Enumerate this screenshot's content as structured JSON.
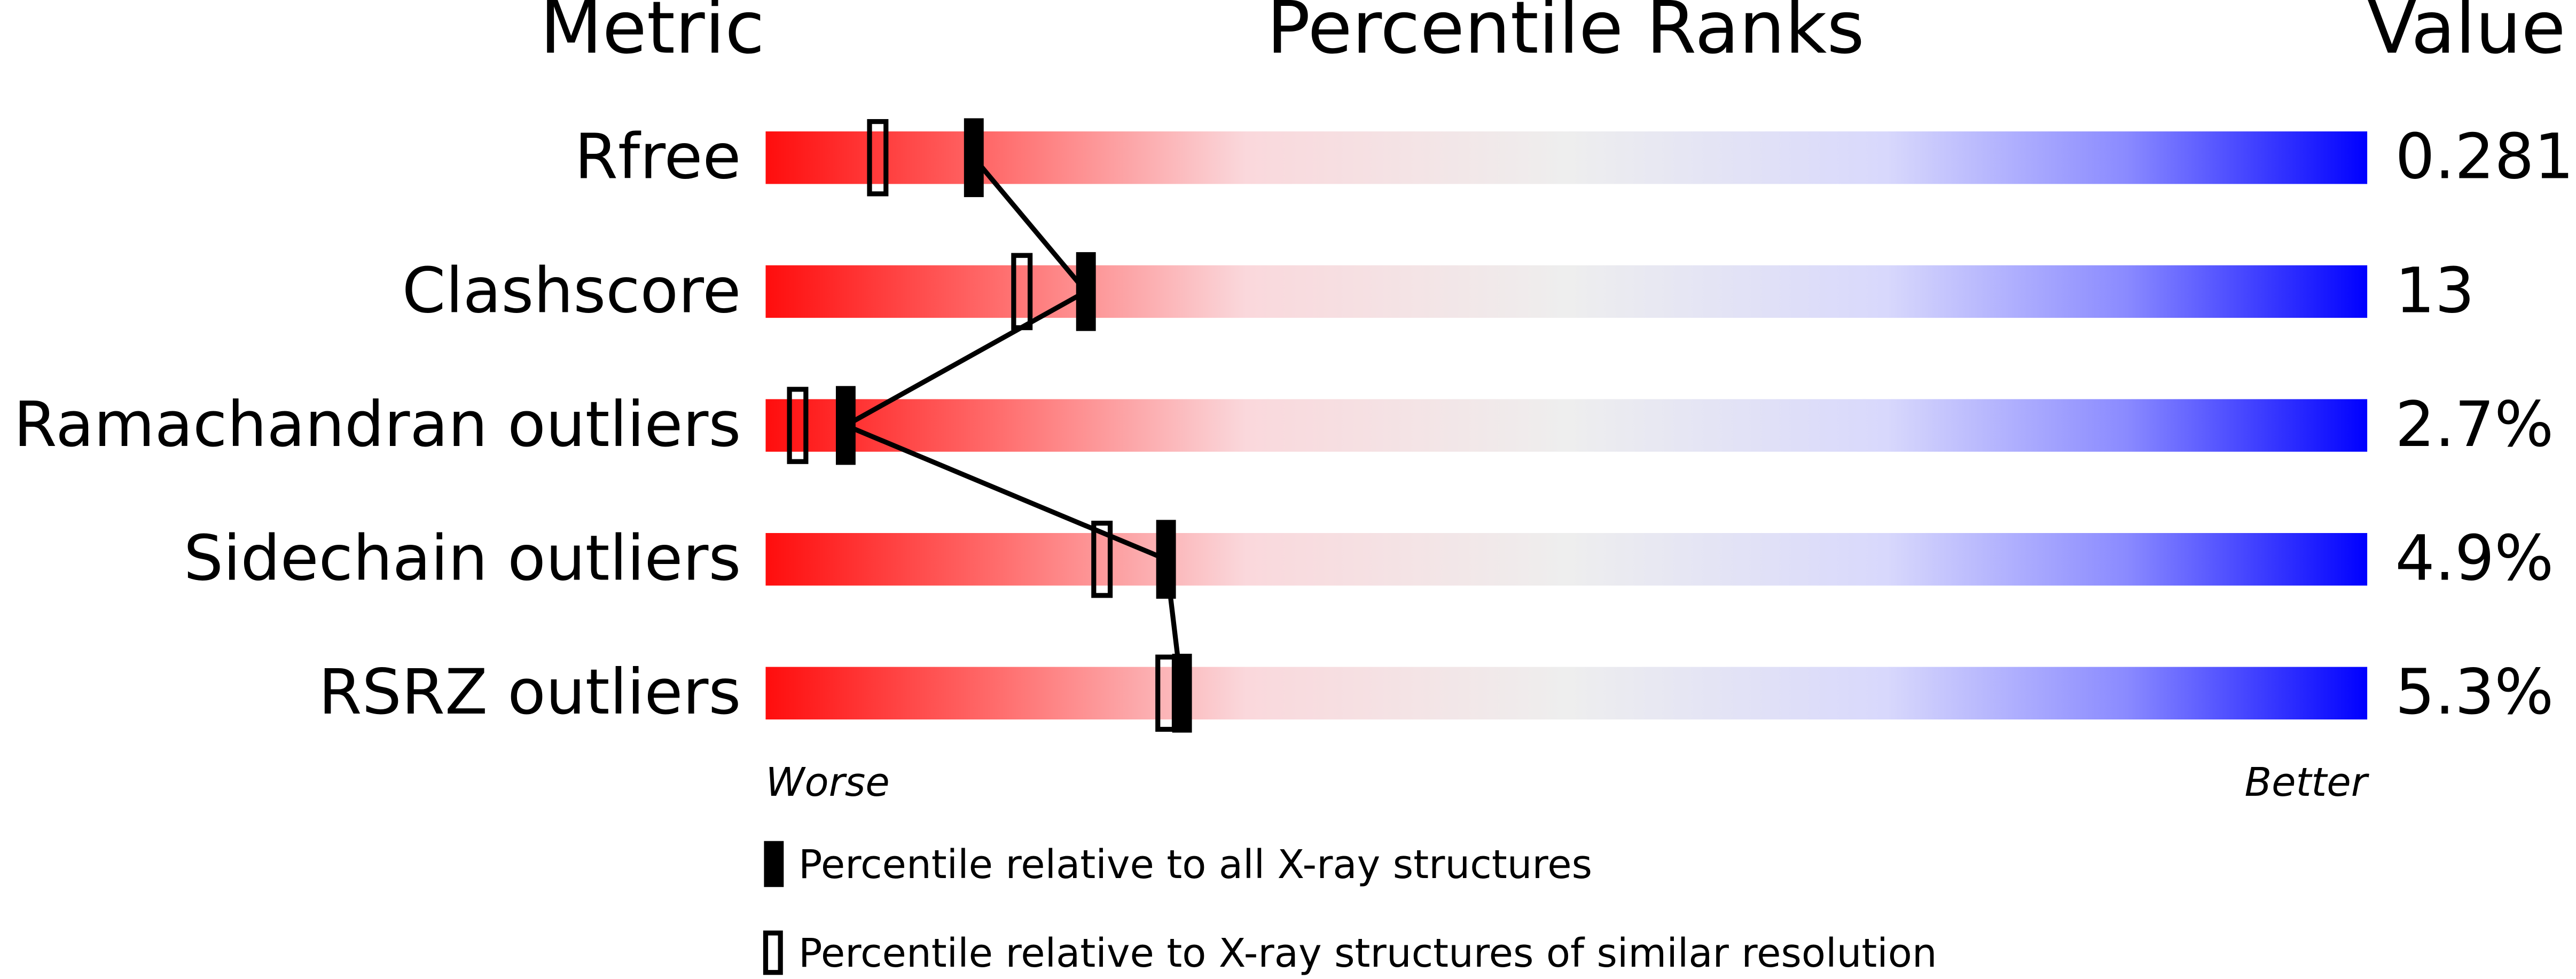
{
  "chart_data": {
    "type": "percentile",
    "metric_header": "Metric",
    "title": "Percentile Ranks",
    "value_header": "Value",
    "categories": [
      "Rfree",
      "Clashscore",
      "Ramachandran outliers",
      "Sidechain outliers",
      "RSRZ outliers"
    ],
    "metric_values": [
      "0.281",
      "13",
      "2.7%",
      "4.9%",
      "5.3%"
    ],
    "xlim": [
      0,
      100
    ],
    "low_label": "Worse",
    "high_label": "Better",
    "series": [
      {
        "name": "Percentile relative to all X-ray structures",
        "color": "#000000",
        "style": "filled",
        "values": [
          13,
          20,
          5,
          25,
          26
        ]
      },
      {
        "name": "Percentile relative to X-ray structures of similar resolution",
        "color": "#000000",
        "style": "open",
        "values": [
          7,
          16,
          2,
          21,
          25
        ]
      }
    ]
  }
}
